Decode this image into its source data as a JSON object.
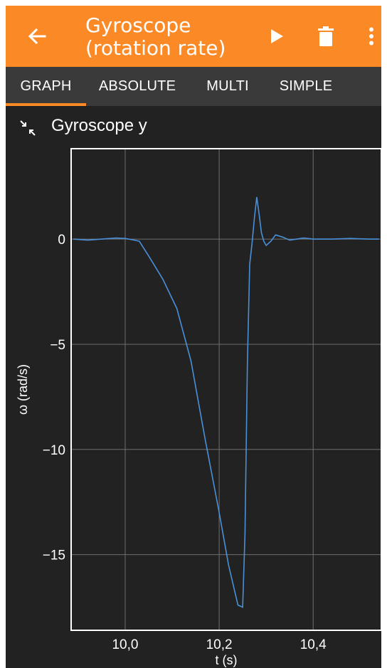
{
  "appbar": {
    "title_line1": "Gyroscope",
    "title_line2": "(rotation rate)",
    "back_icon": "arrow-left-icon",
    "play_icon": "play-icon",
    "delete_icon": "trash-icon",
    "menu_icon": "more-vert-icon",
    "color": "#fb8a26"
  },
  "tabs": [
    {
      "label": "GRAPH",
      "active": true
    },
    {
      "label": "ABSOLUTE",
      "active": false
    },
    {
      "label": "MULTI",
      "active": false
    },
    {
      "label": "SIMPLE",
      "active": false
    }
  ],
  "graph": {
    "title": "Gyroscope y",
    "collapse_icon": "collapse-arrows-icon"
  },
  "chart_data": {
    "type": "line",
    "xlabel": "t (s)",
    "ylabel": "ω (rad/s)",
    "xlim": [
      9.885,
      10.545
    ],
    "ylim": [
      -18.6,
      4.3
    ],
    "xticks": [
      10.0,
      10.2,
      10.4
    ],
    "xtick_labels": [
      "10,0",
      "10,2",
      "10,4"
    ],
    "yticks": [
      0,
      -5,
      -10,
      -15
    ],
    "ytick_labels": [
      "0",
      "−5",
      "−10",
      "−15"
    ],
    "grid": true,
    "line_color": "#4a90d9",
    "series": [
      {
        "x": [
          9.89,
          9.92,
          9.95,
          9.98,
          10.0,
          10.02,
          10.03,
          10.05,
          10.08,
          10.11,
          10.14,
          10.17,
          10.2,
          10.22,
          10.24,
          10.25,
          10.255,
          10.26,
          10.265,
          10.27,
          10.275,
          10.28,
          10.285,
          10.29,
          10.295,
          10.3,
          10.31,
          10.32,
          10.335,
          10.35,
          10.365,
          10.38,
          10.4,
          10.44,
          10.48,
          10.52,
          10.54
        ],
        "y": [
          0.0,
          -0.05,
          0.0,
          0.05,
          0.03,
          -0.05,
          -0.1,
          -0.8,
          -1.9,
          -3.3,
          -5.8,
          -9.5,
          -13.0,
          -15.5,
          -17.4,
          -17.5,
          -14.0,
          -6.0,
          -1.2,
          -0.2,
          1.0,
          2.0,
          1.2,
          0.3,
          -0.1,
          -0.3,
          -0.1,
          0.2,
          0.1,
          -0.05,
          0.0,
          0.05,
          0.0,
          0.0,
          0.03,
          0.0,
          0.0
        ]
      }
    ]
  }
}
